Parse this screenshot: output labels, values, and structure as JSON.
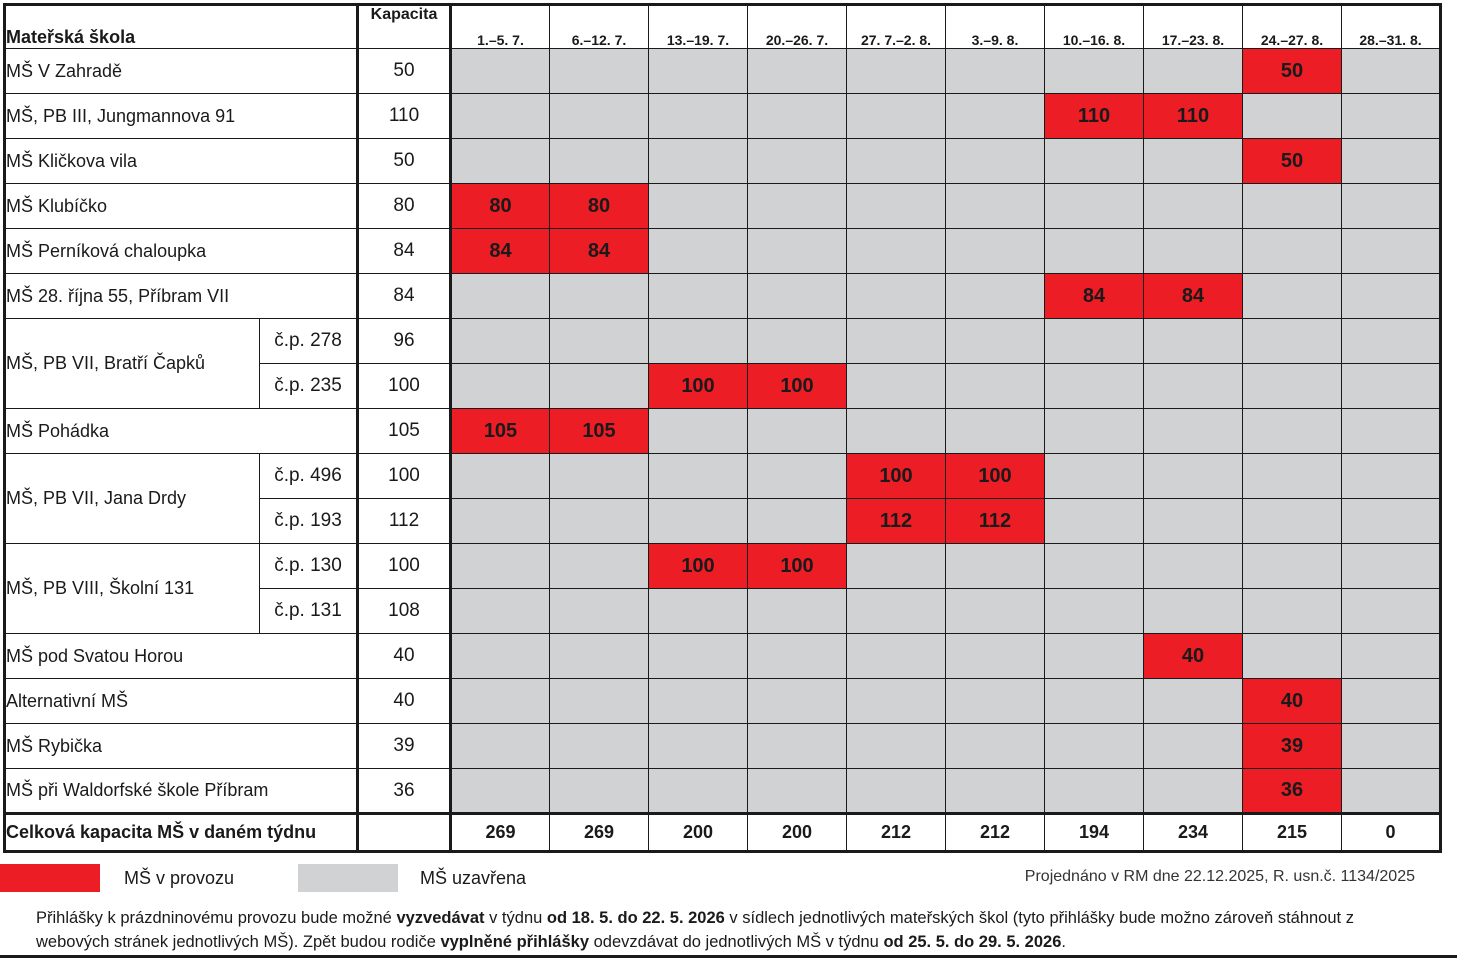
{
  "header": {
    "school": "Mateřská škola",
    "capacity": "Kapacita",
    "weeks": [
      "1.–5. 7.",
      "6.–12. 7.",
      "13.–19. 7.",
      "20.–26. 7.",
      "27. 7.–2. 8.",
      "3.–9. 8.",
      "10.–16. 8.",
      "17.–23. 8.",
      "24.–27. 8.",
      "28.–31. 8."
    ]
  },
  "rows": [
    {
      "name": "MŠ V Zahradě",
      "capacity": "50",
      "cells": [
        "",
        "",
        "",
        "",
        "",
        "",
        "",
        "",
        "50",
        ""
      ]
    },
    {
      "name": "MŠ, PB III, Jungmannova 91",
      "capacity": "110",
      "cells": [
        "",
        "",
        "",
        "",
        "",
        "",
        "110",
        "110",
        "",
        ""
      ]
    },
    {
      "name": "MŠ Kličkova vila",
      "capacity": "50",
      "cells": [
        "",
        "",
        "",
        "",
        "",
        "",
        "",
        "",
        "50",
        ""
      ]
    },
    {
      "name": "MŠ Klubíčko",
      "capacity": "80",
      "cells": [
        "80",
        "80",
        "",
        "",
        "",
        "",
        "",
        "",
        "",
        ""
      ]
    },
    {
      "name": "MŠ Perníková chaloupka",
      "capacity": "84",
      "cells": [
        "84",
        "84",
        "",
        "",
        "",
        "",
        "",
        "",
        "",
        ""
      ]
    },
    {
      "name": "MŠ 28. října 55, Příbram VII",
      "capacity": "84",
      "cells": [
        "",
        "",
        "",
        "",
        "",
        "",
        "84",
        "84",
        "",
        ""
      ]
    },
    {
      "name": "MŠ, PB VII, Bratří Čapků",
      "sub": "č.p. 278",
      "capacity": "96",
      "cells": [
        "",
        "",
        "",
        "",
        "",
        "",
        "",
        "",
        "",
        ""
      ]
    },
    {
      "sub": "č.p. 235",
      "capacity": "100",
      "cells": [
        "",
        "",
        "100",
        "100",
        "",
        "",
        "",
        "",
        "",
        ""
      ]
    },
    {
      "name": "MŠ Pohádka",
      "capacity": "105",
      "cells": [
        "105",
        "105",
        "",
        "",
        "",
        "",
        "",
        "",
        "",
        ""
      ]
    },
    {
      "name": "MŠ, PB VII, Jana Drdy",
      "sub": "č.p. 496",
      "capacity": "100",
      "cells": [
        "",
        "",
        "",
        "",
        "100",
        "100",
        "",
        "",
        "",
        ""
      ]
    },
    {
      "sub": "č.p. 193",
      "capacity": "112",
      "cells": [
        "",
        "",
        "",
        "",
        "112",
        "112",
        "",
        "",
        "",
        ""
      ]
    },
    {
      "name": "MŠ, PB VIII, Školní 131",
      "sub": "č.p. 130",
      "capacity": "100",
      "cells": [
        "",
        "",
        "100",
        "100",
        "",
        "",
        "",
        "",
        "",
        ""
      ]
    },
    {
      "sub": "č.p. 131",
      "capacity": "108",
      "cells": [
        "",
        "",
        "",
        "",
        "",
        "",
        "",
        "",
        "",
        ""
      ]
    },
    {
      "name": "MŠ pod Svatou Horou",
      "capacity": "40",
      "cells": [
        "",
        "",
        "",
        "",
        "",
        "",
        "",
        "40",
        "",
        ""
      ]
    },
    {
      "name": "Alternativní MŠ",
      "capacity": "40",
      "cells": [
        "",
        "",
        "",
        "",
        "",
        "",
        "",
        "",
        "40",
        ""
      ]
    },
    {
      "name": "MŠ Rybička",
      "capacity": "39",
      "cells": [
        "",
        "",
        "",
        "",
        "",
        "",
        "",
        "",
        "39",
        ""
      ]
    },
    {
      "name": "MŠ při Waldorfské škole Příbram",
      "capacity": "36",
      "cells": [
        "",
        "",
        "",
        "",
        "",
        "",
        "",
        "",
        "36",
        ""
      ]
    }
  ],
  "total": {
    "label": "Celková kapacita MŠ v daném týdnu",
    "values": [
      "269",
      "269",
      "200",
      "200",
      "212",
      "212",
      "194",
      "234",
      "215",
      "0"
    ]
  },
  "legend": {
    "open_label": "MŠ v provozu",
    "closed_label": "MŠ uzavřena",
    "open_color": "#ec1d24",
    "closed_color": "#d1d2d4"
  },
  "note": "Projednáno v RM dne 22.12.2025, R. usn.č. 1134/2025",
  "info": {
    "p1": "Přihlášky k prázdninovému provozu bude možné ",
    "b1": "vyzvedávat",
    "p2": " v týdnu ",
    "b2": "od 18. 5. do 22. 5. 2026",
    "p3": " v sídlech jednotlivých mateřských škol (tyto přihlášky bude možno zároveň stáhnout z webových stránek jednotlivých MŠ). Zpět budou rodiče ",
    "b3": "vyplněné přihlášky",
    "p4": " odevzdávat do jednotlivých MŠ v týdnu ",
    "b4": "od 25. 5. do 29. 5. 2026",
    "p5": "."
  }
}
